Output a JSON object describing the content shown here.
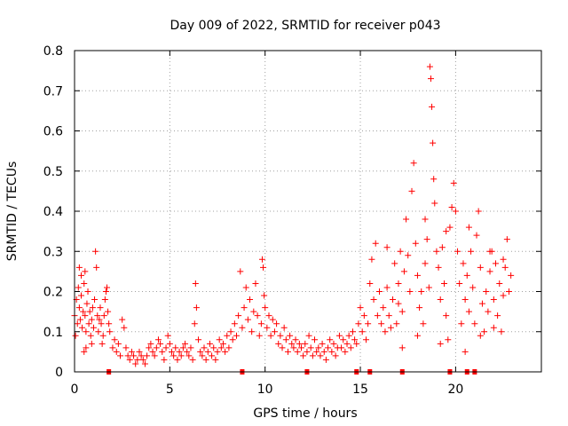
{
  "chart_data": {
    "type": "scatter",
    "title": "Day 009 of 2022, SRMTID for receiver p043",
    "xlabel": "GPS time / hours",
    "ylabel": "SRMTID / TECUs",
    "xlim": [
      0,
      24.5
    ],
    "ylim": [
      0,
      0.8
    ],
    "x_ticks": [
      0,
      5,
      10,
      15,
      20
    ],
    "x_tick_labels": [
      "0",
      "5",
      "10",
      "15",
      "20"
    ],
    "y_ticks": [
      0,
      0.1,
      0.2,
      0.3,
      0.4,
      0.5,
      0.6,
      0.7,
      0.8
    ],
    "y_tick_labels": [
      "0",
      "0.1",
      "0.2",
      "0.3",
      "0.4",
      "0.5",
      "0.6",
      "0.7",
      "0.8"
    ],
    "grid": true,
    "marker": "plus",
    "color": "#ff0000",
    "series": [
      {
        "name": "SRMTID",
        "points": [
          [
            0.0,
            0.14
          ],
          [
            0.05,
            0.09
          ],
          [
            0.1,
            0.18
          ],
          [
            0.15,
            0.12
          ],
          [
            0.2,
            0.21
          ],
          [
            0.25,
            0.16
          ],
          [
            0.3,
            0.13
          ],
          [
            0.35,
            0.19
          ],
          [
            0.4,
            0.11
          ],
          [
            0.45,
            0.15
          ],
          [
            0.5,
            0.22
          ],
          [
            0.55,
            0.14
          ],
          [
            0.6,
            0.1
          ],
          [
            0.65,
            0.17
          ],
          [
            0.7,
            0.2
          ],
          [
            0.75,
            0.12
          ],
          [
            0.8,
            0.15
          ],
          [
            0.85,
            0.09
          ],
          [
            0.9,
            0.13
          ],
          [
            0.95,
            0.16
          ],
          [
            1.0,
            0.11
          ],
          [
            1.05,
            0.18
          ],
          [
            1.1,
            0.3
          ],
          [
            1.15,
            0.26
          ],
          [
            1.2,
            0.14
          ],
          [
            1.25,
            0.1
          ],
          [
            1.3,
            0.13
          ],
          [
            1.35,
            0.16
          ],
          [
            1.4,
            0.12
          ],
          [
            1.5,
            0.09
          ],
          [
            1.55,
            0.14
          ],
          [
            1.6,
            0.18
          ],
          [
            1.65,
            0.2
          ],
          [
            1.7,
            0.21
          ],
          [
            1.75,
            0.15
          ],
          [
            1.8,
            0.12
          ],
          [
            0.25,
            0.26
          ],
          [
            0.35,
            0.24
          ],
          [
            0.55,
            0.25
          ],
          [
            0.6,
            0.06
          ],
          [
            0.5,
            0.05
          ],
          [
            0.9,
            0.07
          ],
          [
            1.45,
            0.07
          ],
          [
            1.85,
            0.1
          ],
          [
            2.0,
            0.06
          ],
          [
            2.1,
            0.08
          ],
          [
            2.2,
            0.05
          ],
          [
            2.3,
            0.07
          ],
          [
            2.4,
            0.04
          ],
          [
            2.5,
            0.13
          ],
          [
            2.6,
            0.11
          ],
          [
            2.7,
            0.06
          ],
          [
            2.8,
            0.04
          ],
          [
            2.9,
            0.03
          ],
          [
            3.0,
            0.05
          ],
          [
            3.1,
            0.04
          ],
          [
            3.2,
            0.02
          ],
          [
            3.3,
            0.03
          ],
          [
            3.4,
            0.05
          ],
          [
            3.5,
            0.04
          ],
          [
            3.6,
            0.03
          ],
          [
            3.7,
            0.02
          ],
          [
            3.8,
            0.04
          ],
          [
            3.9,
            0.06
          ],
          [
            4.0,
            0.07
          ],
          [
            4.1,
            0.05
          ],
          [
            4.2,
            0.04
          ],
          [
            4.3,
            0.06
          ],
          [
            4.4,
            0.08
          ],
          [
            4.5,
            0.07
          ],
          [
            4.6,
            0.05
          ],
          [
            4.7,
            0.03
          ],
          [
            4.8,
            0.06
          ],
          [
            4.9,
            0.09
          ],
          [
            5.0,
            0.07
          ],
          [
            5.1,
            0.05
          ],
          [
            5.2,
            0.04
          ],
          [
            5.3,
            0.06
          ],
          [
            5.4,
            0.03
          ],
          [
            5.5,
            0.05
          ],
          [
            5.6,
            0.04
          ],
          [
            5.7,
            0.06
          ],
          [
            5.8,
            0.07
          ],
          [
            5.9,
            0.05
          ],
          [
            6.0,
            0.04
          ],
          [
            6.1,
            0.06
          ],
          [
            6.2,
            0.03
          ],
          [
            6.3,
            0.12
          ],
          [
            6.35,
            0.22
          ],
          [
            6.4,
            0.16
          ],
          [
            6.5,
            0.08
          ],
          [
            6.6,
            0.05
          ],
          [
            6.7,
            0.04
          ],
          [
            6.8,
            0.06
          ],
          [
            6.9,
            0.03
          ],
          [
            7.0,
            0.05
          ],
          [
            7.1,
            0.07
          ],
          [
            7.2,
            0.04
          ],
          [
            7.3,
            0.06
          ],
          [
            7.4,
            0.03
          ],
          [
            7.5,
            0.05
          ],
          [
            7.6,
            0.08
          ],
          [
            7.7,
            0.06
          ],
          [
            7.8,
            0.07
          ],
          [
            7.9,
            0.05
          ],
          [
            8.0,
            0.09
          ],
          [
            8.1,
            0.06
          ],
          [
            8.2,
            0.1
          ],
          [
            8.3,
            0.08
          ],
          [
            8.4,
            0.12
          ],
          [
            8.5,
            0.09
          ],
          [
            8.6,
            0.14
          ],
          [
            8.7,
            0.25
          ],
          [
            8.8,
            0.11
          ],
          [
            8.9,
            0.16
          ],
          [
            9.0,
            0.21
          ],
          [
            9.1,
            0.13
          ],
          [
            9.2,
            0.18
          ],
          [
            9.3,
            0.1
          ],
          [
            9.4,
            0.15
          ],
          [
            9.5,
            0.22
          ],
          [
            9.6,
            0.14
          ],
          [
            9.7,
            0.09
          ],
          [
            9.8,
            0.12
          ],
          [
            9.85,
            0.28
          ],
          [
            9.9,
            0.26
          ],
          [
            9.95,
            0.19
          ],
          [
            10.0,
            0.16
          ],
          [
            10.1,
            0.11
          ],
          [
            10.2,
            0.14
          ],
          [
            10.3,
            0.09
          ],
          [
            10.4,
            0.13
          ],
          [
            10.5,
            0.1
          ],
          [
            10.6,
            0.12
          ],
          [
            10.7,
            0.07
          ],
          [
            10.8,
            0.09
          ],
          [
            10.9,
            0.06
          ],
          [
            11.0,
            0.11
          ],
          [
            11.1,
            0.08
          ],
          [
            11.2,
            0.05
          ],
          [
            11.3,
            0.09
          ],
          [
            11.4,
            0.07
          ],
          [
            11.5,
            0.06
          ],
          [
            11.6,
            0.08
          ],
          [
            11.7,
            0.05
          ],
          [
            11.8,
            0.07
          ],
          [
            11.9,
            0.06
          ],
          [
            12.0,
            0.04
          ],
          [
            12.1,
            0.07
          ],
          [
            12.2,
            0.05
          ],
          [
            12.3,
            0.09
          ],
          [
            12.4,
            0.06
          ],
          [
            12.5,
            0.04
          ],
          [
            12.6,
            0.08
          ],
          [
            12.7,
            0.05
          ],
          [
            12.8,
            0.06
          ],
          [
            12.9,
            0.04
          ],
          [
            13.0,
            0.07
          ],
          [
            13.1,
            0.05
          ],
          [
            13.2,
            0.03
          ],
          [
            13.3,
            0.06
          ],
          [
            13.4,
            0.08
          ],
          [
            13.5,
            0.05
          ],
          [
            13.6,
            0.07
          ],
          [
            13.7,
            0.04
          ],
          [
            13.8,
            0.06
          ],
          [
            13.9,
            0.09
          ],
          [
            14.0,
            0.06
          ],
          [
            14.1,
            0.08
          ],
          [
            14.2,
            0.05
          ],
          [
            14.3,
            0.07
          ],
          [
            14.4,
            0.09
          ],
          [
            14.5,
            0.06
          ],
          [
            14.6,
            0.1
          ],
          [
            14.7,
            0.08
          ],
          [
            14.8,
            0.07
          ],
          [
            14.9,
            0.12
          ],
          [
            15.0,
            0.16
          ],
          [
            15.1,
            0.1
          ],
          [
            15.2,
            0.14
          ],
          [
            15.3,
            0.08
          ],
          [
            15.4,
            0.12
          ],
          [
            15.5,
            0.22
          ],
          [
            15.6,
            0.28
          ],
          [
            15.7,
            0.18
          ],
          [
            15.8,
            0.32
          ],
          [
            15.9,
            0.14
          ],
          [
            16.0,
            0.2
          ],
          [
            16.1,
            0.12
          ],
          [
            16.2,
            0.16
          ],
          [
            16.3,
            0.1
          ],
          [
            16.4,
            0.21
          ],
          [
            16.5,
            0.14
          ],
          [
            16.6,
            0.11
          ],
          [
            16.7,
            0.18
          ],
          [
            16.8,
            0.27
          ],
          [
            16.9,
            0.12
          ],
          [
            17.0,
            0.22
          ],
          [
            17.1,
            0.3
          ],
          [
            17.2,
            0.15
          ],
          [
            17.3,
            0.25
          ],
          [
            17.4,
            0.38
          ],
          [
            17.5,
            0.29
          ],
          [
            17.6,
            0.2
          ],
          [
            17.7,
            0.45
          ],
          [
            17.8,
            0.52
          ],
          [
            17.9,
            0.32
          ],
          [
            18.0,
            0.24
          ],
          [
            18.1,
            0.16
          ],
          [
            18.2,
            0.2
          ],
          [
            18.3,
            0.12
          ],
          [
            18.4,
            0.27
          ],
          [
            18.5,
            0.33
          ],
          [
            18.6,
            0.21
          ],
          [
            18.65,
            0.76
          ],
          [
            18.7,
            0.73
          ],
          [
            18.75,
            0.66
          ],
          [
            18.8,
            0.57
          ],
          [
            18.85,
            0.48
          ],
          [
            18.9,
            0.42
          ],
          [
            19.0,
            0.3
          ],
          [
            19.1,
            0.26
          ],
          [
            19.2,
            0.18
          ],
          [
            19.3,
            0.31
          ],
          [
            19.4,
            0.22
          ],
          [
            19.5,
            0.14
          ],
          [
            19.6,
            0.08
          ],
          [
            19.7,
            0.36
          ],
          [
            19.8,
            0.41
          ],
          [
            19.9,
            0.47
          ],
          [
            20.0,
            0.4
          ],
          [
            20.1,
            0.3
          ],
          [
            20.2,
            0.22
          ],
          [
            20.3,
            0.12
          ],
          [
            20.4,
            0.27
          ],
          [
            20.5,
            0.18
          ],
          [
            20.6,
            0.24
          ],
          [
            20.7,
            0.15
          ],
          [
            20.8,
            0.3
          ],
          [
            20.9,
            0.21
          ],
          [
            21.0,
            0.12
          ],
          [
            21.1,
            0.34
          ],
          [
            21.2,
            0.4
          ],
          [
            21.3,
            0.26
          ],
          [
            21.4,
            0.17
          ],
          [
            21.5,
            0.1
          ],
          [
            21.6,
            0.2
          ],
          [
            21.7,
            0.15
          ],
          [
            21.8,
            0.25
          ],
          [
            21.9,
            0.3
          ],
          [
            22.0,
            0.18
          ],
          [
            22.1,
            0.27
          ],
          [
            22.2,
            0.14
          ],
          [
            22.3,
            0.22
          ],
          [
            22.4,
            0.1
          ],
          [
            22.5,
            0.19
          ],
          [
            22.6,
            0.26
          ],
          [
            22.7,
            0.33
          ],
          [
            22.8,
            0.2
          ],
          [
            22.9,
            0.24
          ],
          [
            17.2,
            0.06
          ],
          [
            18.0,
            0.09
          ],
          [
            19.2,
            0.07
          ],
          [
            20.5,
            0.05
          ],
          [
            21.3,
            0.09
          ],
          [
            22.0,
            0.11
          ],
          [
            16.4,
            0.31
          ],
          [
            17.0,
            0.17
          ],
          [
            18.4,
            0.38
          ],
          [
            19.5,
            0.35
          ],
          [
            20.7,
            0.36
          ],
          [
            21.8,
            0.3
          ],
          [
            22.5,
            0.28
          ]
        ]
      }
    ],
    "axis_markers_x": [
      1.8,
      8.8,
      12.2,
      14.8,
      15.5,
      17.2,
      19.7,
      20.6,
      21.0
    ]
  }
}
